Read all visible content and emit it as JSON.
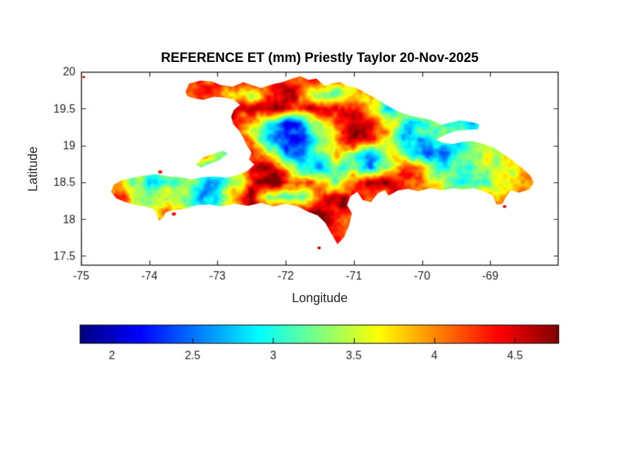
{
  "figure": {
    "background": "#ffffff",
    "axis_color": "#262626",
    "box_color": "#1a1a1a",
    "title_color": "#000000"
  },
  "chart_data": {
    "type": "heatmap",
    "title": "REFERENCE ET (mm) Priestly Taylor 20-Nov-2025",
    "xlabel": "Longitude",
    "ylabel": "Latitude",
    "region": "Hispaniola",
    "units": "mm",
    "xlim": [
      -75,
      -68
    ],
    "ylim": [
      17.37,
      20
    ],
    "xticks": [
      -75,
      -74,
      -73,
      -72,
      -71,
      -70,
      -69
    ],
    "xtick_labels": [
      "-75",
      "-74",
      "-73",
      "-72",
      "-71",
      "-70",
      "-69"
    ],
    "yticks": [
      20,
      19.5,
      19,
      18.5,
      18,
      17.5
    ],
    "ytick_labels": [
      "20",
      "19.5",
      "19",
      "18.5",
      "18",
      "17.5"
    ],
    "colormap": "jet",
    "grid_on": false,
    "colorbar": {
      "orientation": "horizontal",
      "position": "south",
      "vmin": 1.8,
      "vmax": 4.77,
      "ticks": [
        2,
        2.5,
        3,
        3.5,
        4,
        4.5
      ],
      "tick_labels": [
        "2",
        "2.5",
        "3",
        "3.5",
        "4",
        "4.5"
      ]
    },
    "grid": {
      "lon_start": -74.5,
      "dlon": 0.25,
      "lat_start": 19.9,
      "dlat": -0.2,
      "ncols": 26,
      "nrows": 12,
      "values": [
        [
          null,
          null,
          null,
          null,
          null,
          null,
          4.3,
          4.4,
          4.2,
          4.0,
          4.3,
          4.4,
          4.2,
          4.0,
          3.8,
          null,
          null,
          null,
          null,
          null,
          null,
          null,
          null,
          null,
          null,
          null
        ],
        [
          null,
          null,
          null,
          null,
          4.4,
          4.5,
          4.3,
          4.0,
          3.7,
          4.2,
          4.4,
          4.3,
          3.6,
          3.4,
          3.9,
          4.2,
          3.3,
          3.0,
          null,
          null,
          null,
          null,
          null,
          null,
          null,
          null
        ],
        [
          null,
          null,
          null,
          null,
          4.2,
          4.4,
          4.5,
          4.3,
          4.1,
          4.4,
          4.5,
          4.2,
          4.4,
          4.5,
          4.3,
          4.0,
          2.9,
          3.1,
          3.5,
          null,
          null,
          null,
          null,
          null,
          null,
          null
        ],
        [
          null,
          null,
          null,
          null,
          4.5,
          4.6,
          4.4,
          4.1,
          3.5,
          2.7,
          2.3,
          2.5,
          3.2,
          4.3,
          4.6,
          4.4,
          3.8,
          3.0,
          3.3,
          3.2,
          3.1,
          2.9,
          null,
          null,
          null,
          null
        ],
        [
          null,
          null,
          null,
          null,
          null,
          4.6,
          4.5,
          4.2,
          3.6,
          2.5,
          2.1,
          2.4,
          3.0,
          4.2,
          4.6,
          4.4,
          4.0,
          2.8,
          3.0,
          3.1,
          3.2,
          3.8,
          4.0,
          null,
          null,
          null
        ],
        [
          null,
          null,
          null,
          null,
          null,
          null,
          3.2,
          3.1,
          4.5,
          3.1,
          2.7,
          2.5,
          3.1,
          4.0,
          3.4,
          3.0,
          3.6,
          3.4,
          2.7,
          2.4,
          2.9,
          3.2,
          3.3,
          3.4,
          3.6,
          null
        ],
        [
          null,
          null,
          null,
          null,
          null,
          null,
          null,
          null,
          4.6,
          4.4,
          3.8,
          3.0,
          2.9,
          3.4,
          3.0,
          2.6,
          3.4,
          4.3,
          4.2,
          3.2,
          3.0,
          3.2,
          3.3,
          3.5,
          3.8,
          3.9
        ],
        [
          4.2,
          3.0,
          2.7,
          3.0,
          3.3,
          3.0,
          2.9,
          3.3,
          4.4,
          4.7,
          4.6,
          4.3,
          3.9,
          3.4,
          4.1,
          4.5,
          4.4,
          4.3,
          4.2,
          3.9,
          3.4,
          3.3,
          3.4,
          3.6,
          3.9,
          4.0
        ],
        [
          4.2,
          3.5,
          3.2,
          3.8,
          3.4,
          2.9,
          3.1,
          3.8,
          4.5,
          3.0,
          2.8,
          3.2,
          4.4,
          4.3,
          4.4,
          4.4,
          4.3,
          4.2,
          4.1,
          4.0,
          3.8,
          3.8,
          4.1,
          4.3,
          4.0,
          null
        ],
        [
          null,
          null,
          null,
          4.2,
          null,
          null,
          null,
          null,
          4.5,
          4.6,
          4.6,
          4.5,
          4.7,
          4.5,
          null,
          null,
          null,
          null,
          null,
          null,
          null,
          null,
          4.5,
          4.4,
          null,
          null
        ],
        [
          null,
          null,
          null,
          null,
          null,
          null,
          null,
          null,
          null,
          null,
          null,
          null,
          4.7,
          4.6,
          null,
          null,
          null,
          null,
          null,
          null,
          null,
          null,
          null,
          null,
          null,
          null
        ],
        [
          null,
          null,
          null,
          null,
          null,
          null,
          null,
          null,
          null,
          null,
          null,
          null,
          4.6,
          4.5,
          null,
          null,
          null,
          null,
          null,
          null,
          null,
          null,
          null,
          null,
          null,
          null
        ]
      ]
    },
    "coastline": {
      "main": [
        [
          -73.47,
          19.72
        ],
        [
          -73.42,
          19.84
        ],
        [
          -73.25,
          19.88
        ],
        [
          -73.09,
          19.87
        ],
        [
          -72.95,
          19.82
        ],
        [
          -72.78,
          19.8
        ],
        [
          -72.62,
          19.86
        ],
        [
          -72.5,
          19.82
        ],
        [
          -72.36,
          19.78
        ],
        [
          -72.2,
          19.83
        ],
        [
          -72.05,
          19.86
        ],
        [
          -71.9,
          19.91
        ],
        [
          -71.79,
          19.94
        ],
        [
          -71.66,
          19.89
        ],
        [
          -71.55,
          19.91
        ],
        [
          -71.43,
          19.81
        ],
        [
          -71.3,
          19.85
        ],
        [
          -71.2,
          19.86
        ],
        [
          -71.08,
          19.8
        ],
        [
          -70.98,
          19.79
        ],
        [
          -70.86,
          19.73
        ],
        [
          -70.74,
          19.67
        ],
        [
          -70.61,
          19.6
        ],
        [
          -70.47,
          19.52
        ],
        [
          -70.32,
          19.45
        ],
        [
          -70.15,
          19.4
        ],
        [
          -69.98,
          19.37
        ],
        [
          -69.85,
          19.34
        ],
        [
          -69.72,
          19.28
        ],
        [
          -69.6,
          19.31
        ],
        [
          -69.45,
          19.34
        ],
        [
          -69.3,
          19.32
        ],
        [
          -69.16,
          19.29
        ],
        [
          -69.18,
          19.22
        ],
        [
          -69.35,
          19.21
        ],
        [
          -69.5,
          19.2
        ],
        [
          -69.62,
          19.16
        ],
        [
          -69.71,
          19.12
        ],
        [
          -69.79,
          19.08
        ],
        [
          -69.7,
          19.04
        ],
        [
          -69.55,
          19.02
        ],
        [
          -69.4,
          19.05
        ],
        [
          -69.25,
          19.06
        ],
        [
          -69.1,
          19.02
        ],
        [
          -68.95,
          18.97
        ],
        [
          -68.82,
          18.89
        ],
        [
          -68.68,
          18.8
        ],
        [
          -68.54,
          18.7
        ],
        [
          -68.42,
          18.6
        ],
        [
          -68.36,
          18.5
        ],
        [
          -68.43,
          18.4
        ],
        [
          -68.58,
          18.36
        ],
        [
          -68.7,
          18.39
        ],
        [
          -68.77,
          18.3
        ],
        [
          -68.82,
          18.21
        ],
        [
          -68.91,
          18.2
        ],
        [
          -68.96,
          18.32
        ],
        [
          -69.1,
          18.38
        ],
        [
          -69.25,
          18.42
        ],
        [
          -69.4,
          18.4
        ],
        [
          -69.55,
          18.42
        ],
        [
          -69.7,
          18.39
        ],
        [
          -69.88,
          18.42
        ],
        [
          -70.05,
          18.38
        ],
        [
          -70.2,
          18.41
        ],
        [
          -70.35,
          18.39
        ],
        [
          -70.49,
          18.32
        ],
        [
          -70.55,
          18.39
        ],
        [
          -70.65,
          18.35
        ],
        [
          -70.75,
          18.23
        ],
        [
          -70.87,
          18.26
        ],
        [
          -70.95,
          18.37
        ],
        [
          -71.05,
          18.31
        ],
        [
          -71.1,
          18.19
        ],
        [
          -71.03,
          18.08
        ],
        [
          -71.07,
          17.92
        ],
        [
          -71.14,
          17.76
        ],
        [
          -71.24,
          17.66
        ],
        [
          -71.33,
          17.8
        ],
        [
          -71.42,
          17.95
        ],
        [
          -71.53,
          18.05
        ],
        [
          -71.67,
          18.1
        ],
        [
          -71.82,
          18.17
        ],
        [
          -72.0,
          18.21
        ],
        [
          -72.18,
          18.17
        ],
        [
          -72.36,
          18.22
        ],
        [
          -72.55,
          18.18
        ],
        [
          -72.75,
          18.21
        ],
        [
          -72.95,
          18.17
        ],
        [
          -73.12,
          18.2
        ],
        [
          -73.3,
          18.19
        ],
        [
          -73.48,
          18.14
        ],
        [
          -73.65,
          18.12
        ],
        [
          -73.76,
          18.09
        ],
        [
          -73.8,
          18.02
        ],
        [
          -73.86,
          17.98
        ],
        [
          -73.89,
          18.07
        ],
        [
          -73.94,
          18.14
        ],
        [
          -74.05,
          18.17
        ],
        [
          -74.2,
          18.19
        ],
        [
          -74.35,
          18.23
        ],
        [
          -74.48,
          18.28
        ],
        [
          -74.56,
          18.37
        ],
        [
          -74.52,
          18.47
        ],
        [
          -74.4,
          18.53
        ],
        [
          -74.25,
          18.56
        ],
        [
          -74.08,
          18.59
        ],
        [
          -73.9,
          18.61
        ],
        [
          -73.72,
          18.58
        ],
        [
          -73.55,
          18.57
        ],
        [
          -73.38,
          18.54
        ],
        [
          -73.2,
          18.57
        ],
        [
          -73.03,
          18.58
        ],
        [
          -72.88,
          18.56
        ],
        [
          -72.7,
          18.6
        ],
        [
          -72.55,
          18.66
        ],
        [
          -72.46,
          18.74
        ],
        [
          -72.54,
          18.81
        ],
        [
          -72.5,
          18.9
        ],
        [
          -72.57,
          19.0
        ],
        [
          -72.62,
          19.1
        ],
        [
          -72.68,
          19.2
        ],
        [
          -72.77,
          19.29
        ],
        [
          -72.8,
          19.39
        ],
        [
          -72.76,
          19.48
        ],
        [
          -72.67,
          19.55
        ],
        [
          -72.76,
          19.62
        ],
        [
          -72.9,
          19.65
        ],
        [
          -73.06,
          19.66
        ],
        [
          -73.2,
          19.62
        ],
        [
          -73.34,
          19.64
        ],
        [
          -73.44,
          19.67
        ]
      ],
      "gonave": [
        [
          -73.32,
          18.74
        ],
        [
          -73.22,
          18.83
        ],
        [
          -73.08,
          18.88
        ],
        [
          -72.92,
          18.93
        ],
        [
          -72.85,
          18.89
        ],
        [
          -72.97,
          18.8
        ],
        [
          -73.12,
          18.75
        ],
        [
          -73.24,
          18.7
        ]
      ],
      "islets": [
        {
          "name": "ile-a-vache",
          "lon": -73.64,
          "lat": 18.07,
          "r": 3,
          "value": 4.4
        },
        {
          "name": "grande-cayemite",
          "lon": -73.84,
          "lat": 18.64,
          "r": 3,
          "value": 4.3
        },
        {
          "name": "beata",
          "lon": -71.51,
          "lat": 17.61,
          "r": 2.5,
          "value": 4.6
        },
        {
          "name": "saona",
          "lon": -68.79,
          "lat": 18.17,
          "r": 2.5,
          "value": 4.5
        },
        {
          "name": "stray-mark",
          "lon": -74.96,
          "lat": 19.93,
          "r": 2,
          "value": 4.5
        }
      ]
    }
  }
}
